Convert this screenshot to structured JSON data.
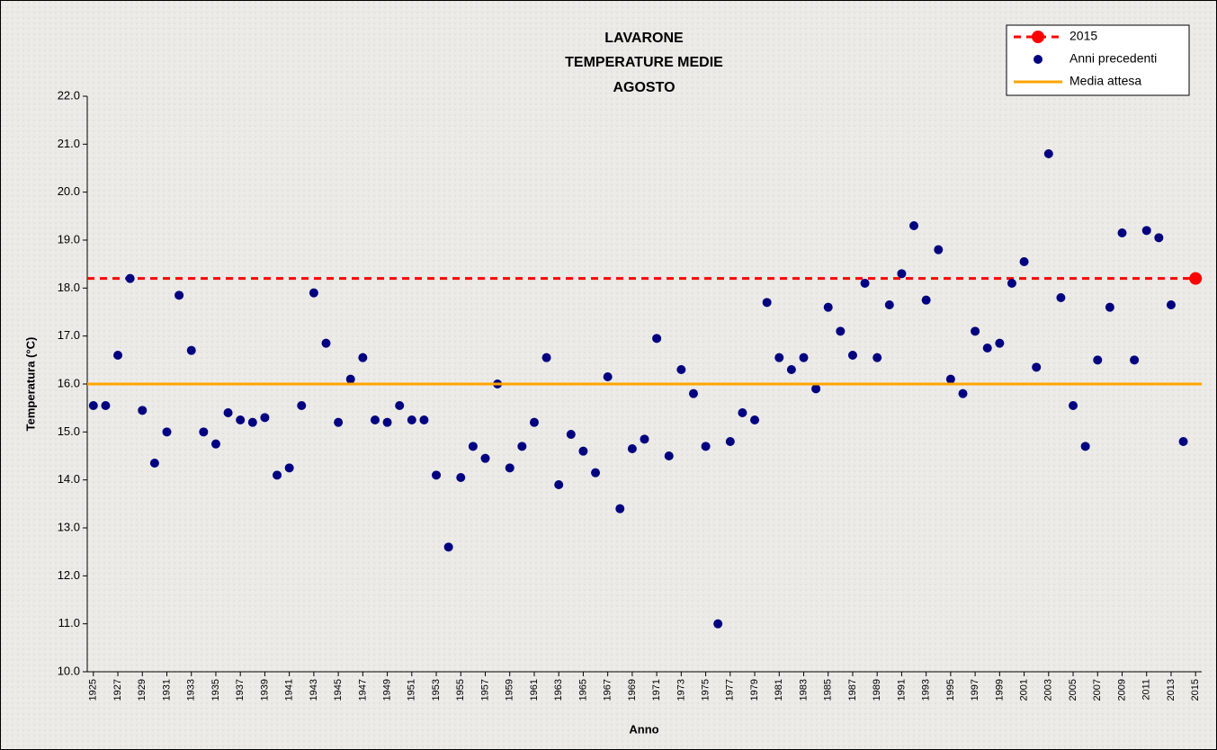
{
  "chart_data": {
    "type": "scatter",
    "title": [
      "LAVARONE",
      "TEMPERATURE MEDIE",
      "AGOSTO"
    ],
    "x_label": "Anno",
    "y_label": "Temperatura (°C)",
    "xlim": [
      1924.5,
      2015.5
    ],
    "ylim": [
      10,
      22
    ],
    "yticks": [
      {
        "value": 10,
        "label": "10.0"
      },
      {
        "value": 11,
        "label": "11.0"
      },
      {
        "value": 12,
        "label": "12.0"
      },
      {
        "value": 13,
        "label": "13.0"
      },
      {
        "value": 14,
        "label": "14.0"
      },
      {
        "value": 15,
        "label": "15.0"
      },
      {
        "value": 16,
        "label": "16.0"
      },
      {
        "value": 17,
        "label": "17.0"
      },
      {
        "value": 18,
        "label": "18.0"
      },
      {
        "value": 19,
        "label": "19.0"
      },
      {
        "value": 20,
        "label": "20.0"
      },
      {
        "value": 21,
        "label": "21.0"
      },
      {
        "value": 22,
        "label": "22.0"
      }
    ],
    "xticks": [
      1925,
      1927,
      1929,
      1931,
      1933,
      1935,
      1937,
      1939,
      1941,
      1943,
      1945,
      1947,
      1949,
      1951,
      1953,
      1955,
      1957,
      1959,
      1961,
      1963,
      1965,
      1967,
      1969,
      1971,
      1973,
      1975,
      1977,
      1979,
      1981,
      1983,
      1985,
      1987,
      1989,
      1991,
      1993,
      1995,
      1997,
      1999,
      2001,
      2003,
      2005,
      2007,
      2009,
      2011,
      2013,
      2015
    ],
    "legend": "top-right",
    "series": [
      {
        "name": "2015",
        "color": "#ff0000",
        "style": "dashed-hline",
        "x": [
          2015
        ],
        "values": [
          18.2
        ]
      },
      {
        "name": "Anni precedenti",
        "color": "#000080",
        "style": "points",
        "x": [
          1925,
          1926,
          1927,
          1928,
          1929,
          1930,
          1931,
          1932,
          1933,
          1934,
          1935,
          1936,
          1937,
          1938,
          1939,
          1940,
          1941,
          1942,
          1943,
          1944,
          1945,
          1946,
          1947,
          1948,
          1949,
          1950,
          1951,
          1952,
          1953,
          1954,
          1955,
          1956,
          1957,
          1958,
          1959,
          1960,
          1961,
          1962,
          1963,
          1964,
          1965,
          1966,
          1967,
          1968,
          1969,
          1970,
          1971,
          1972,
          1973,
          1974,
          1975,
          1976,
          1977,
          1978,
          1979,
          1980,
          1981,
          1982,
          1983,
          1984,
          1985,
          1986,
          1987,
          1988,
          1989,
          1990,
          1991,
          1992,
          1993,
          1994,
          1995,
          1996,
          1997,
          1998,
          1999,
          2000,
          2001,
          2002,
          2003,
          2004,
          2005,
          2006,
          2007,
          2008,
          2009,
          2010,
          2011,
          2012,
          2013,
          2014
        ],
        "values": [
          15.55,
          15.55,
          16.6,
          18.2,
          15.45,
          14.35,
          15.0,
          17.85,
          16.7,
          15.0,
          14.75,
          15.4,
          15.25,
          15.2,
          15.3,
          14.1,
          14.25,
          15.55,
          17.9,
          16.85,
          15.2,
          16.1,
          16.55,
          15.25,
          15.2,
          15.55,
          15.25,
          15.25,
          14.1,
          12.6,
          14.05,
          14.7,
          14.45,
          16.0,
          14.25,
          14.7,
          15.2,
          16.55,
          13.9,
          14.95,
          14.6,
          14.15,
          16.15,
          13.4,
          14.65,
          14.85,
          16.95,
          14.5,
          16.3,
          15.8,
          14.7,
          11.0,
          14.8,
          15.4,
          15.25,
          17.7,
          16.55,
          16.3,
          16.55,
          15.9,
          17.6,
          17.1,
          16.6,
          18.1,
          16.55,
          17.65,
          18.3,
          19.3,
          17.75,
          18.8,
          16.1,
          15.8,
          17.1,
          16.75,
          16.85,
          18.1,
          18.55,
          16.35,
          20.8,
          17.8,
          15.55,
          14.7,
          16.5,
          17.6,
          19.15,
          16.5,
          19.2,
          19.05,
          17.65,
          14.8
        ]
      },
      {
        "name": "Media attesa",
        "color": "#ffa500",
        "style": "hline",
        "values": [
          16.0
        ]
      }
    ]
  }
}
